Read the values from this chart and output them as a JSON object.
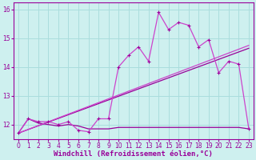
{
  "xlabel": "Windchill (Refroidissement éolien,°C)",
  "bg_color": "#cef0ef",
  "grid_color": "#aadddd",
  "line_color": "#990099",
  "line_color_light": "#cc44cc",
  "xlim": [
    -0.5,
    23.5
  ],
  "ylim": [
    11.5,
    16.25
  ],
  "yticks": [
    12,
    13,
    14,
    15,
    16
  ],
  "xticks": [
    0,
    1,
    2,
    3,
    4,
    5,
    6,
    7,
    8,
    9,
    10,
    11,
    12,
    13,
    14,
    15,
    16,
    17,
    18,
    19,
    20,
    21,
    22,
    23
  ],
  "series_main_x": [
    0,
    1,
    2,
    3,
    4,
    5,
    6,
    7,
    8,
    9,
    10,
    11,
    12,
    13,
    14,
    15,
    16,
    17,
    18,
    19,
    20,
    21,
    22,
    23
  ],
  "series_main_y": [
    11.7,
    12.2,
    12.1,
    12.1,
    12.0,
    12.1,
    11.8,
    11.75,
    12.2,
    12.2,
    14.0,
    14.4,
    14.7,
    14.2,
    15.9,
    15.3,
    15.55,
    15.45,
    14.7,
    14.95,
    13.8,
    14.2,
    14.1,
    11.85
  ],
  "series_flat_x": [
    0,
    1,
    2,
    3,
    4,
    5,
    6,
    7,
    8,
    9,
    10,
    11,
    12,
    13,
    14,
    15,
    16,
    17,
    18,
    19,
    20,
    21,
    22,
    23
  ],
  "series_flat_y": [
    11.7,
    12.2,
    12.05,
    12.0,
    11.95,
    12.0,
    11.95,
    11.85,
    11.85,
    11.85,
    11.9,
    11.9,
    11.9,
    11.9,
    11.9,
    11.9,
    11.9,
    11.9,
    11.9,
    11.9,
    11.9,
    11.9,
    11.9,
    11.85
  ],
  "series_trend1_x": [
    0,
    23
  ],
  "series_trend1_y": [
    11.7,
    14.65
  ],
  "series_trend2_x": [
    0,
    23
  ],
  "series_trend2_y": [
    11.7,
    14.75
  ],
  "marker": "+",
  "markersize": 3,
  "linewidth": 0.9,
  "tick_fontsize": 5.5,
  "xlabel_fontsize": 6.5
}
